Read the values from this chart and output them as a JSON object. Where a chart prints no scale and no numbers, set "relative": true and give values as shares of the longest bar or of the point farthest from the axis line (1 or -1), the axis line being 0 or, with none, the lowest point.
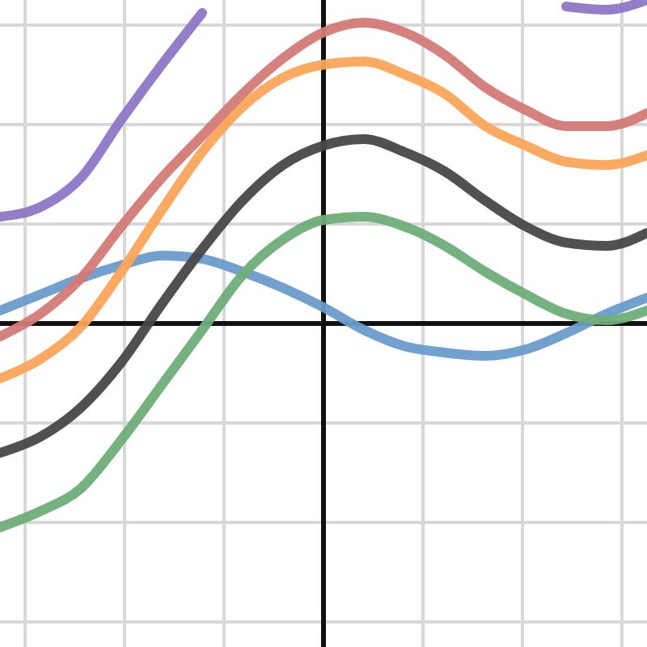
{
  "chart_data": {
    "type": "line",
    "relative": true,
    "grid": true,
    "legend": false,
    "marker": "none",
    "line_style": "solid",
    "categories": [
      null,
      null,
      null,
      null,
      null,
      null,
      null,
      null,
      null,
      null,
      null,
      null,
      null,
      null,
      null,
      null,
      null
    ],
    "series": [
      {
        "color": "#6a9ccd",
        "values": [
          0.04,
          0.09,
          0.14,
          0.18,
          0.21,
          0.2,
          0.16,
          0.11,
          0.05,
          -0.02,
          -0.07,
          -0.09,
          -0.1,
          -0.08,
          -0.03,
          0.03,
          0.08
        ]
      },
      {
        "color": "#6fae78",
        "values": [
          -0.63,
          -0.58,
          -0.51,
          -0.36,
          -0.19,
          -0.02,
          0.15,
          0.26,
          0.32,
          0.33,
          0.3,
          0.24,
          0.16,
          0.09,
          0.03,
          0.01,
          0.04
        ]
      },
      {
        "color": "#474747",
        "values": [
          -0.4,
          -0.35,
          -0.26,
          -0.12,
          0.06,
          0.23,
          0.38,
          0.49,
          0.55,
          0.57,
          0.53,
          0.47,
          0.38,
          0.3,
          0.25,
          0.24,
          0.28
        ]
      },
      {
        "color": "#fca55a",
        "values": [
          -0.17,
          -0.11,
          -0.01,
          0.16,
          0.35,
          0.53,
          0.67,
          0.76,
          0.8,
          0.81,
          0.77,
          0.71,
          0.61,
          0.55,
          0.5,
          0.49,
          0.52
        ]
      },
      {
        "color": "#d37a76",
        "values": [
          -0.04,
          0.03,
          0.14,
          0.3,
          0.45,
          0.58,
          0.71,
          0.82,
          0.9,
          0.93,
          0.9,
          0.83,
          0.73,
          0.66,
          0.61,
          0.61,
          0.65
        ]
      },
      {
        "color": "#8e77c6",
        "values": [
          0.33,
          0.36,
          0.45,
          0.63,
          0.8,
          0.96,
          null,
          null,
          null,
          null,
          null,
          null,
          null,
          null,
          0.98,
          0.97,
          1.0
        ]
      }
    ]
  }
}
